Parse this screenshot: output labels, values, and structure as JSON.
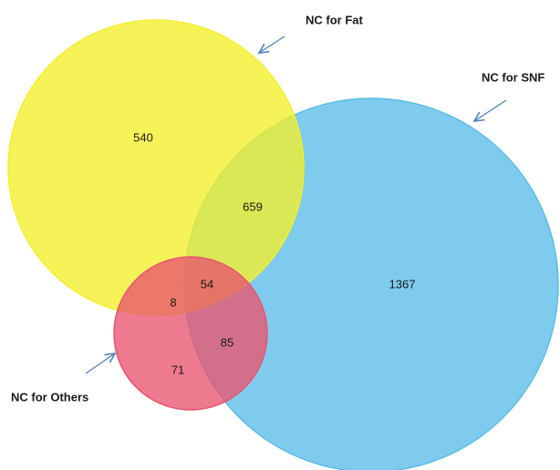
{
  "sets": [
    {
      "label": "NC for SNF",
      "color": "#5bbde9"
    },
    {
      "label": "NC for Fat",
      "color": "#f4ef2a"
    },
    {
      "label": "NC for Others",
      "color": "#e9546f"
    }
  ],
  "regions": [
    {
      "sets": [
        "NC for Fat"
      ],
      "count": 540
    },
    {
      "sets": [
        "NC for Fat",
        "NC for SNF"
      ],
      "count": 659
    },
    {
      "sets": [
        "NC for SNF"
      ],
      "count": 1367
    },
    {
      "sets": [
        "NC for Fat",
        "NC for SNF",
        "NC for Others"
      ],
      "count": 54
    },
    {
      "sets": [
        "NC for Fat",
        "NC for Others"
      ],
      "count": 8
    },
    {
      "sets": [
        "NC for SNF",
        "NC for Others"
      ],
      "count": 85
    },
    {
      "sets": [
        "NC for Others"
      ],
      "count": 71
    }
  ]
}
